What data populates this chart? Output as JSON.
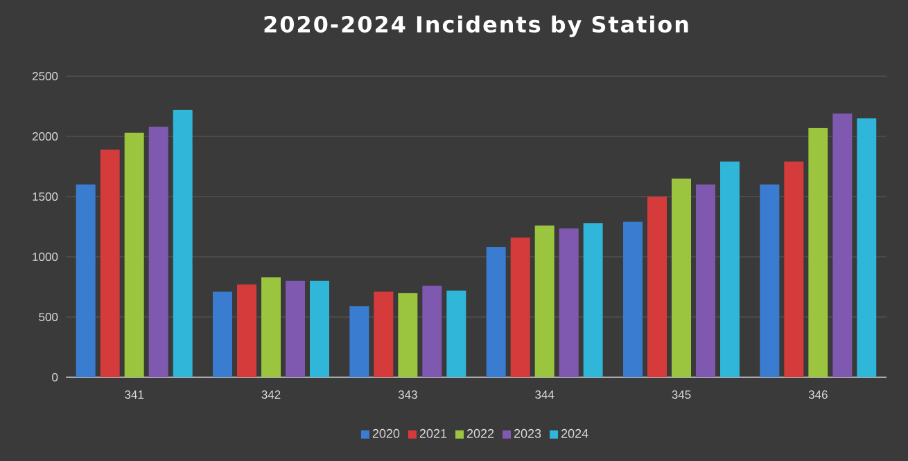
{
  "chart_data": {
    "type": "bar",
    "title": "2020-2024 Incidents by Station",
    "categories": [
      "341",
      "342",
      "343",
      "344",
      "345",
      "346"
    ],
    "series": [
      {
        "name": "2020",
        "color": "#3a7dd0",
        "values": [
          1600,
          710,
          590,
          1080,
          1290,
          1600
        ]
      },
      {
        "name": "2021",
        "color": "#d63b3b",
        "values": [
          1890,
          770,
          710,
          1160,
          1500,
          1790
        ]
      },
      {
        "name": "2022",
        "color": "#9bc43f",
        "values": [
          2030,
          830,
          700,
          1260,
          1650,
          2070
        ]
      },
      {
        "name": "2023",
        "color": "#7f58b0",
        "values": [
          2080,
          800,
          760,
          1235,
          1600,
          2190
        ]
      },
      {
        "name": "2024",
        "color": "#2fb6d8",
        "values": [
          2220,
          800,
          720,
          1280,
          1790,
          2150
        ]
      }
    ],
    "ylim": [
      0,
      2500
    ],
    "yticks": [
      0,
      500,
      1000,
      1500,
      2000,
      2500
    ],
    "grid": "y",
    "legend": "bottom"
  }
}
